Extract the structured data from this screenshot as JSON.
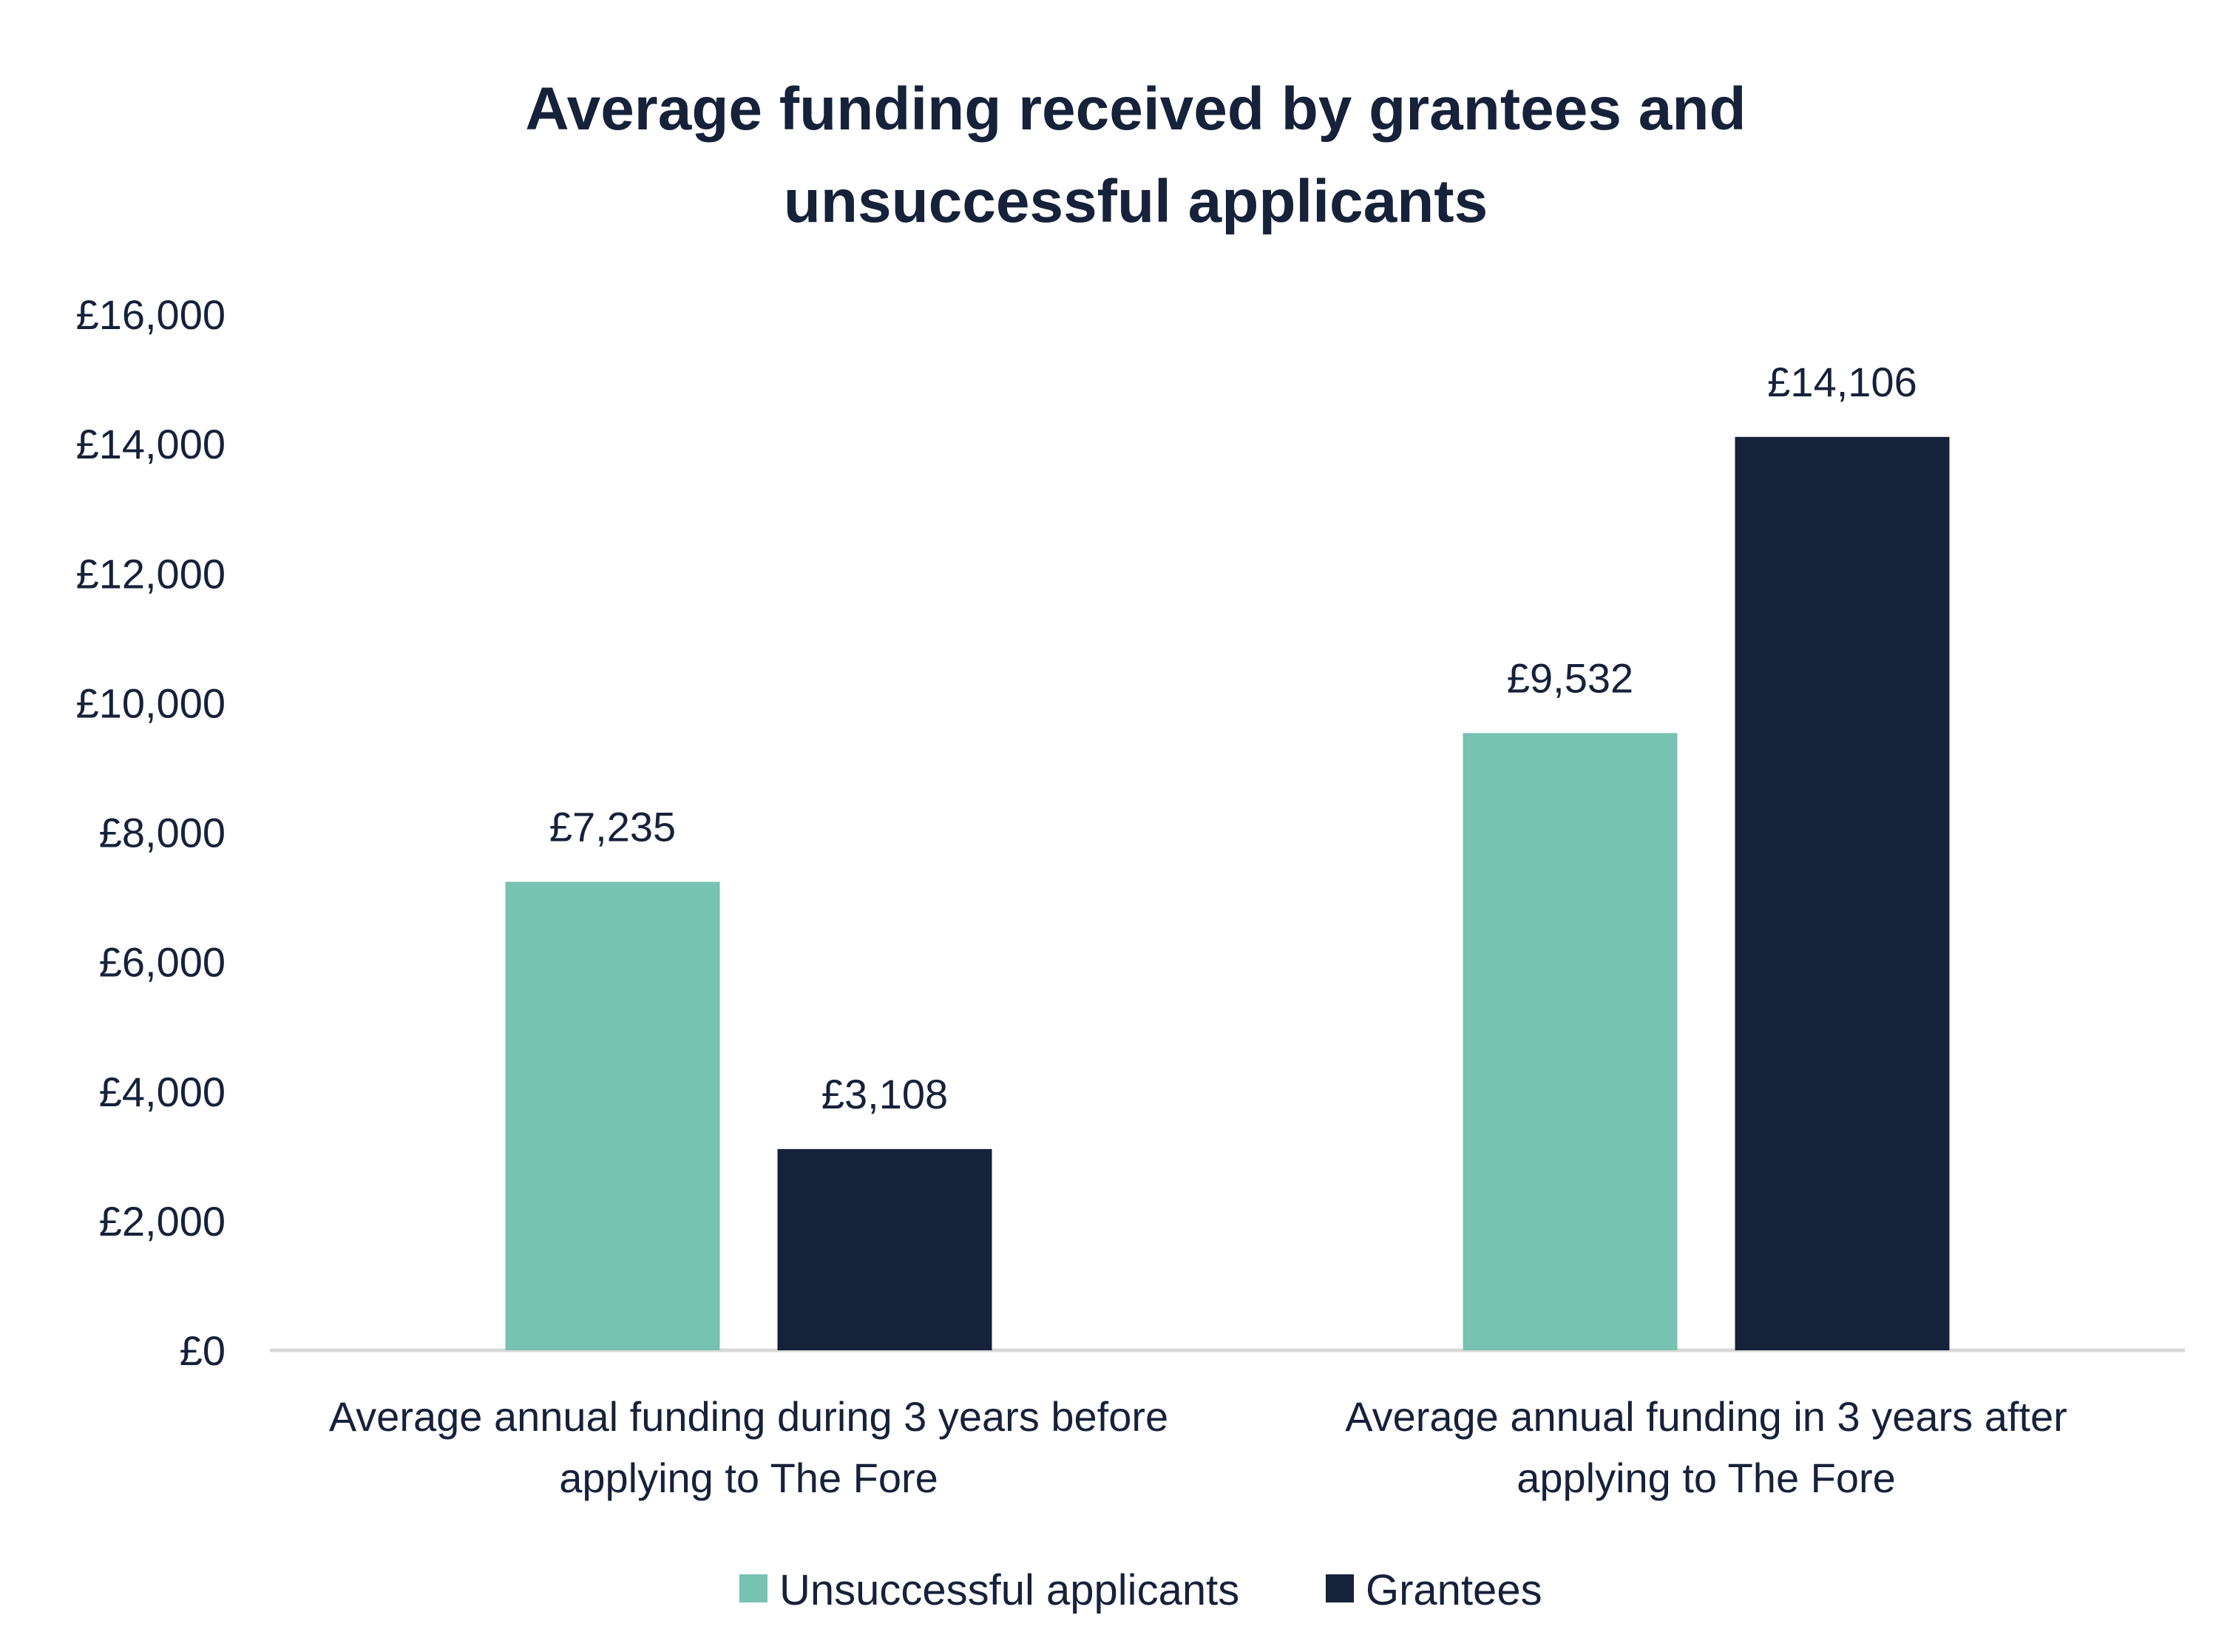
{
  "chart_data": {
    "type": "bar",
    "title": [
      "Average funding received by grantees and",
      "unsuccessful applicants"
    ],
    "xlabel": "",
    "ylabel": "",
    "ylim": [
      0,
      16000
    ],
    "yticks": [
      0,
      2000,
      4000,
      6000,
      8000,
      10000,
      12000,
      14000,
      16000
    ],
    "ytick_labels": [
      "£0",
      "£2,000",
      "£4,000",
      "£6,000",
      "£8,000",
      "£10,000",
      "£12,000",
      "£14,000",
      "£16,000"
    ],
    "categories": [
      [
        "Average annual funding during 3 years before",
        "applying to The Fore"
      ],
      [
        "Average annual funding in 3 years after",
        "applying to The Fore"
      ]
    ],
    "series": [
      {
        "name": "Unsuccessful applicants",
        "color": "#77c2b1",
        "values": [
          7235,
          9532
        ],
        "labels": [
          "£7,235",
          "£9,532"
        ]
      },
      {
        "name": "Grantees",
        "color": "#16213a",
        "values": [
          3108,
          14106
        ],
        "labels": [
          "£3,108",
          "£14,106"
        ]
      }
    ],
    "grid": false,
    "legend_position": "bottom"
  }
}
